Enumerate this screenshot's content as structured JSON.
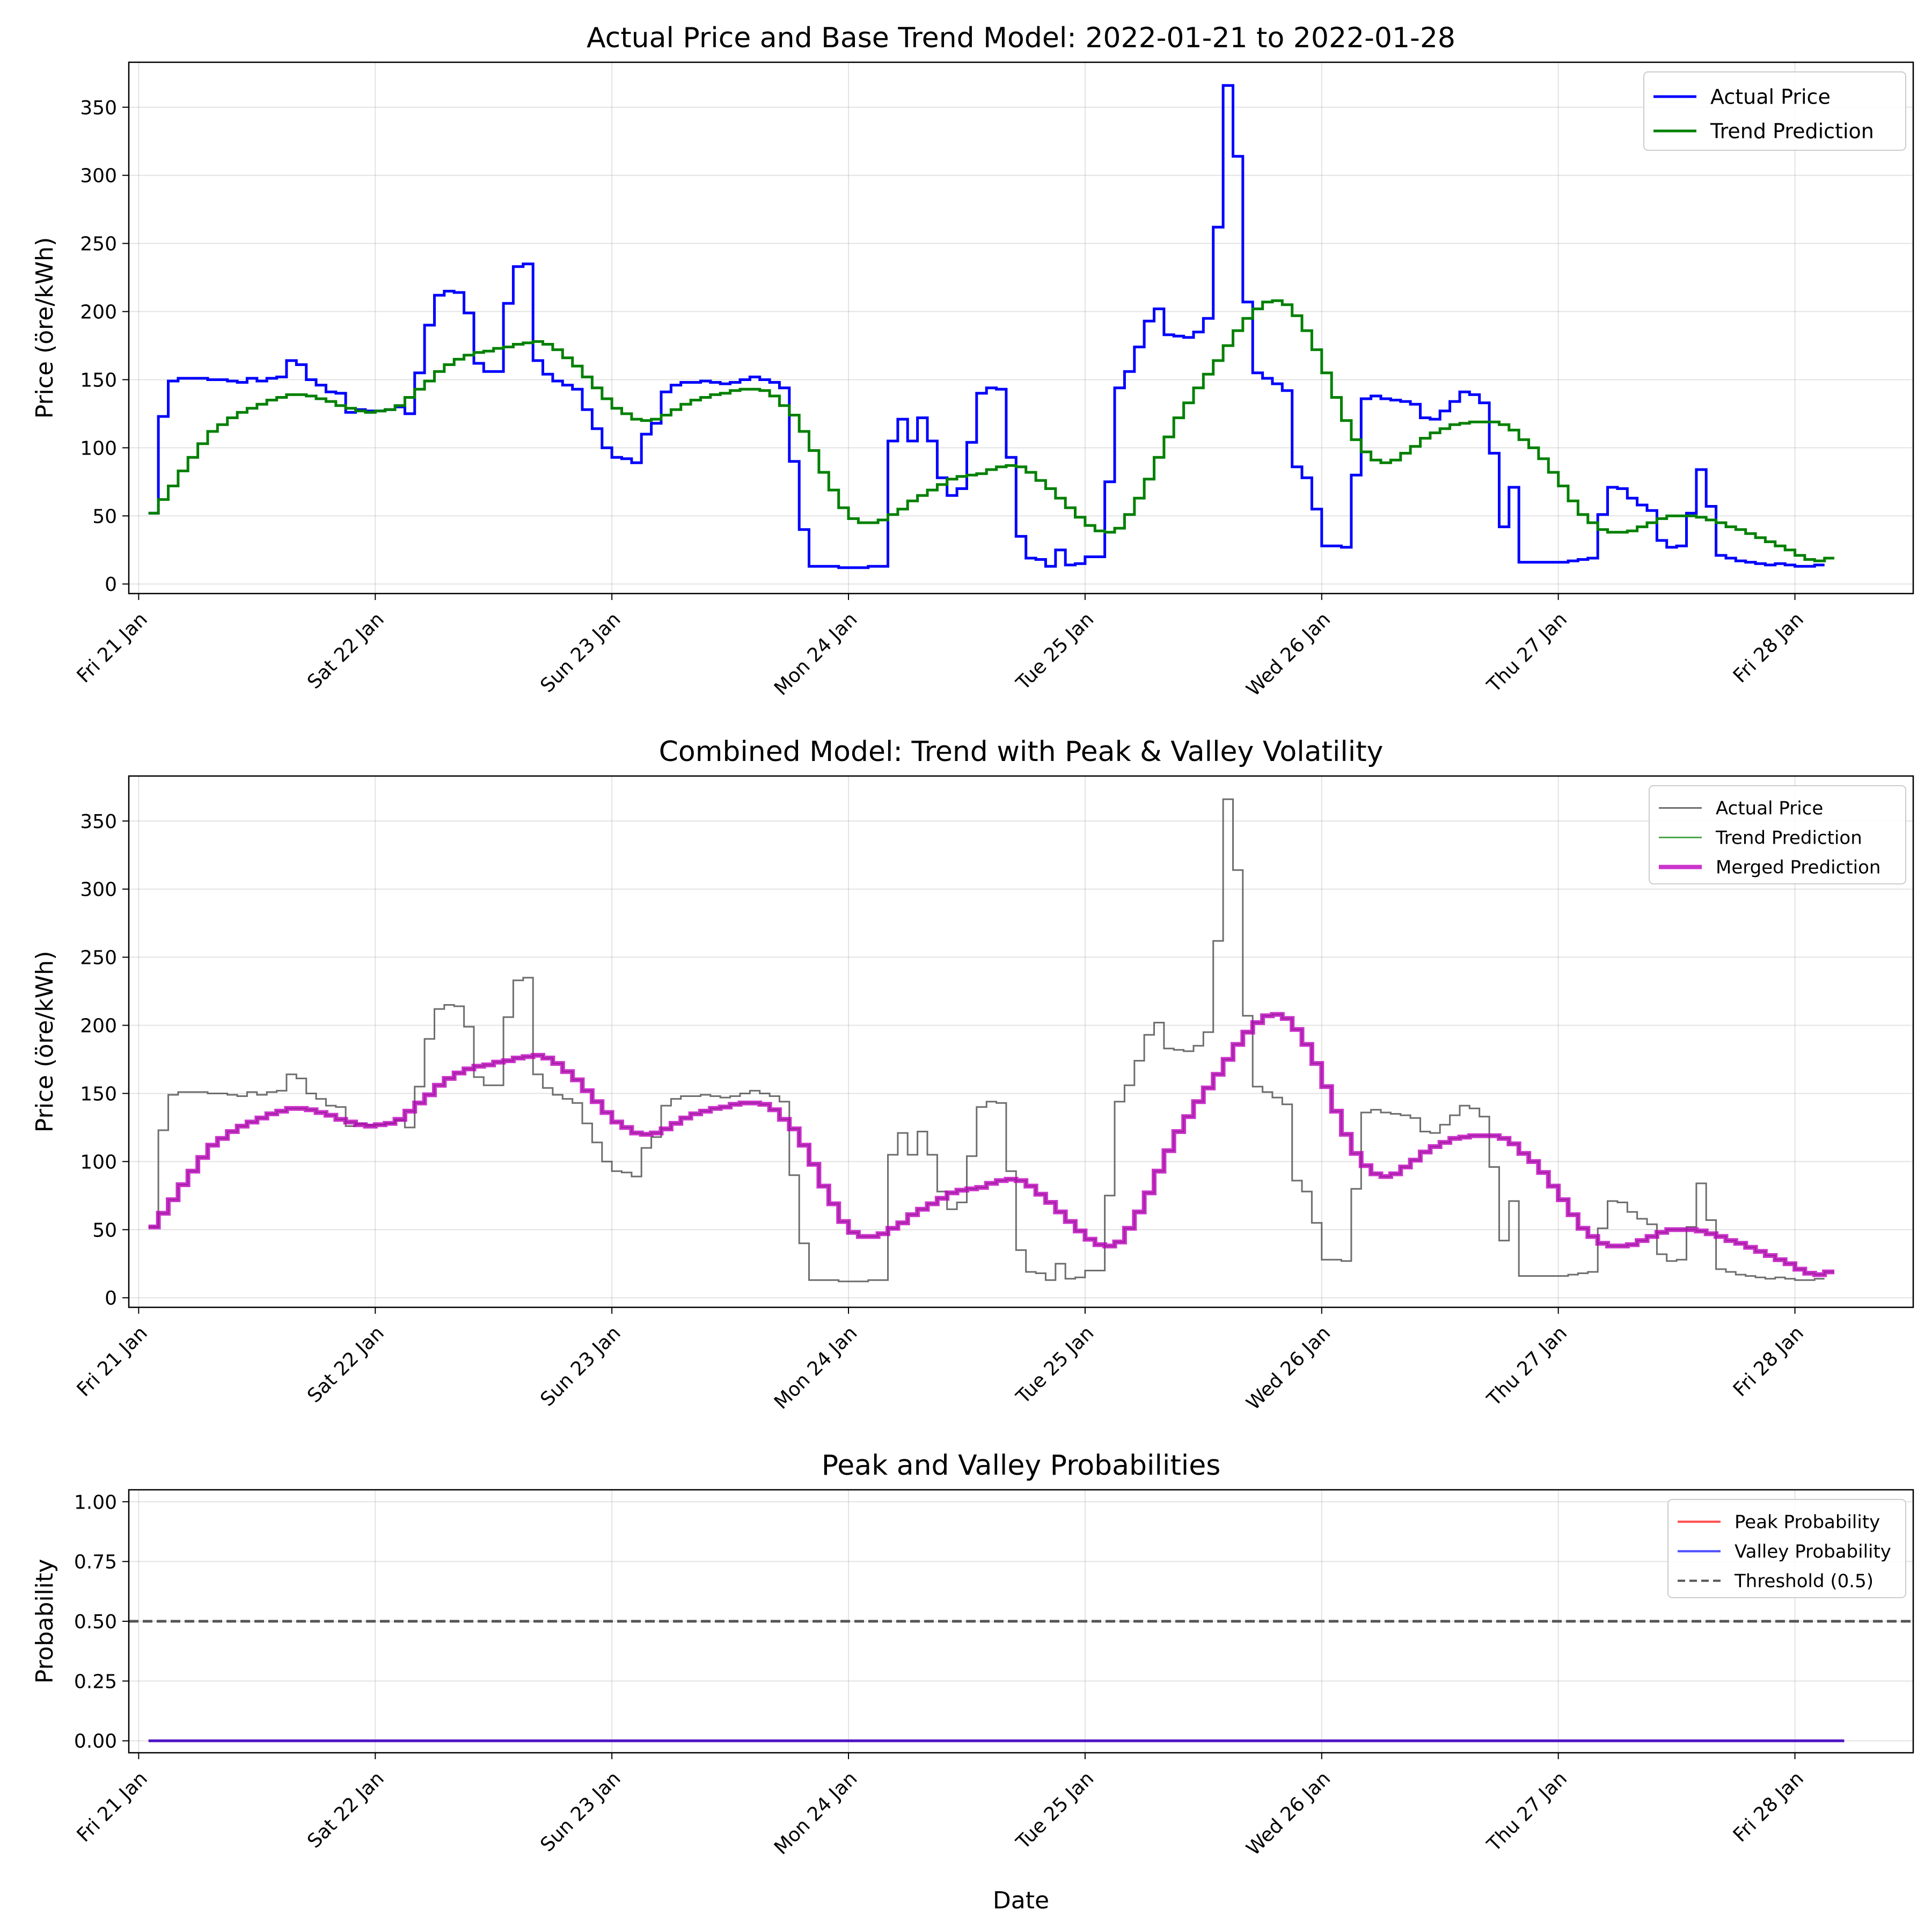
{
  "x_tick_labels": [
    "Fri 21 Jan",
    "Sat 22 Jan",
    "Sun 23 Jan",
    "Mon 24 Jan",
    "Tue 25 Jan",
    "Wed 26 Jan",
    "Thu 27 Jan",
    "Fri 28 Jan"
  ],
  "colors": {
    "actual": "#0000ff",
    "trend": "#008000",
    "actual_grey": "#555555",
    "merged": "#bf00bf",
    "peak": "#ff0000",
    "valley": "#0000ff",
    "threshold": "#555555"
  },
  "chart_data": [
    {
      "type": "line",
      "title": "Actual Price and Base Trend Model: 2022-01-21 to 2022-01-28",
      "xlabel": "",
      "ylabel": "Price (öre/kWh)",
      "x_range": [
        "2022-01-20T23:00",
        "2022-01-28T12:00"
      ],
      "ylim": [
        -7,
        383
      ],
      "yticks": [
        0,
        50,
        100,
        150,
        200,
        250,
        300,
        350
      ],
      "grid": true,
      "legend": "top-right",
      "step": true,
      "x_start": "2022-01-21T01:00",
      "x_step_hours": 1,
      "series": [
        {
          "name": "Actual Price",
          "color": "#0000ff",
          "values": [
            52,
            123,
            149,
            151,
            151,
            151,
            150,
            150,
            149,
            148,
            151,
            149,
            151,
            152,
            164,
            161,
            150,
            146,
            141,
            140,
            126,
            128,
            127,
            127,
            128,
            130,
            125,
            155,
            190,
            212,
            215,
            214,
            199,
            162,
            156,
            156,
            206,
            233,
            235,
            164,
            154,
            149,
            146,
            143,
            128,
            114,
            100,
            93,
            92,
            89,
            110,
            118,
            141,
            146,
            148,
            148,
            149,
            148,
            147,
            148,
            150,
            152,
            150,
            148,
            144,
            90,
            40,
            13,
            13,
            13,
            12,
            12,
            12,
            13,
            13,
            105,
            121,
            105,
            122,
            105,
            78,
            65,
            70,
            104,
            140,
            144,
            143,
            93,
            35,
            19,
            18,
            13,
            25,
            14,
            15,
            20,
            20,
            75,
            144,
            156,
            174,
            193,
            202,
            183,
            182,
            181,
            185,
            195,
            262,
            366,
            314,
            207,
            155,
            151,
            147,
            142,
            86,
            78,
            55,
            28,
            28,
            27,
            80,
            136,
            138,
            136,
            135,
            134,
            132,
            122,
            121,
            127,
            134,
            141,
            139,
            133,
            96,
            42,
            71,
            16,
            16,
            16,
            16,
            16,
            17,
            18,
            19,
            51,
            71,
            70,
            63,
            58,
            54,
            32,
            27,
            28,
            52,
            84,
            57,
            21,
            19,
            17,
            16,
            15,
            14,
            15,
            14,
            13,
            13,
            14
          ]
        },
        {
          "name": "Trend Prediction",
          "color": "#008000",
          "values": [
            52,
            62,
            72,
            83,
            93,
            103,
            112,
            117,
            122,
            126,
            129,
            132,
            135,
            137,
            139,
            139,
            138,
            136,
            134,
            131,
            129,
            127,
            126,
            127,
            128,
            131,
            137,
            143,
            149,
            156,
            161,
            165,
            168,
            170,
            171,
            173,
            174,
            176,
            177,
            178,
            176,
            172,
            166,
            160,
            152,
            144,
            136,
            129,
            125,
            121,
            120,
            121,
            124,
            128,
            132,
            135,
            137,
            139,
            140,
            142,
            143,
            143,
            142,
            138,
            131,
            124,
            112,
            98,
            82,
            69,
            56,
            48,
            45,
            45,
            47,
            51,
            55,
            61,
            65,
            69,
            73,
            77,
            79,
            80,
            81,
            84,
            86,
            87,
            86,
            82,
            76,
            70,
            63,
            56,
            49,
            43,
            39,
            38,
            41,
            51,
            63,
            77,
            93,
            108,
            122,
            133,
            144,
            154,
            164,
            175,
            186,
            195,
            202,
            207,
            208,
            205,
            197,
            186,
            172,
            155,
            137,
            120,
            106,
            97,
            91,
            89,
            91,
            96,
            101,
            107,
            111,
            114,
            117,
            118,
            119,
            119,
            119,
            117,
            113,
            106,
            100,
            92,
            82,
            72,
            61,
            51,
            45,
            40,
            38,
            38,
            39,
            42,
            45,
            48,
            50,
            50,
            50,
            49,
            47,
            45,
            42,
            40,
            37,
            34,
            31,
            28,
            25,
            21,
            18,
            17,
            19
          ]
        }
      ]
    },
    {
      "type": "line",
      "title": "Combined Model: Trend with Peak & Valley Volatility",
      "xlabel": "",
      "ylabel": "Price (öre/kWh)",
      "x_range": [
        "2022-01-20T23:00",
        "2022-01-28T12:00"
      ],
      "ylim": [
        -7,
        383
      ],
      "yticks": [
        0,
        50,
        100,
        150,
        200,
        250,
        300,
        350
      ],
      "grid": true,
      "legend": "top-right",
      "step": true,
      "series_refs": {
        "Actual Price": 0,
        "Trend Prediction": 1,
        "Merged Prediction": 1
      },
      "series_styles": [
        {
          "name": "Actual Price",
          "color": "#555555"
        },
        {
          "name": "Trend Prediction",
          "color": "#008000"
        },
        {
          "name": "Merged Prediction",
          "color": "#bf00bf"
        }
      ]
    },
    {
      "type": "line",
      "title": "Peak and Valley Probabilities",
      "xlabel": "Date",
      "ylabel": "Probability",
      "x_range": [
        "2022-01-20T23:00",
        "2022-01-28T12:00"
      ],
      "ylim": [
        -0.05,
        1.05
      ],
      "yticks": [
        0.0,
        0.25,
        0.5,
        0.75,
        1.0
      ],
      "ytick_labels": [
        "0.00",
        "0.25",
        "0.50",
        "0.75",
        "1.00"
      ],
      "grid": true,
      "legend": "top-right",
      "x_start": "2022-01-21T01:00",
      "x_end": "2022-01-28T05:00",
      "series": [
        {
          "name": "Peak Probability",
          "color": "#ff0000",
          "value": 0
        },
        {
          "name": "Valley Probability",
          "color": "#0000ff",
          "value": 0
        },
        {
          "name": "Threshold (0.5)",
          "color": "#555555",
          "value": 0.5,
          "dashed": true
        }
      ]
    }
  ]
}
